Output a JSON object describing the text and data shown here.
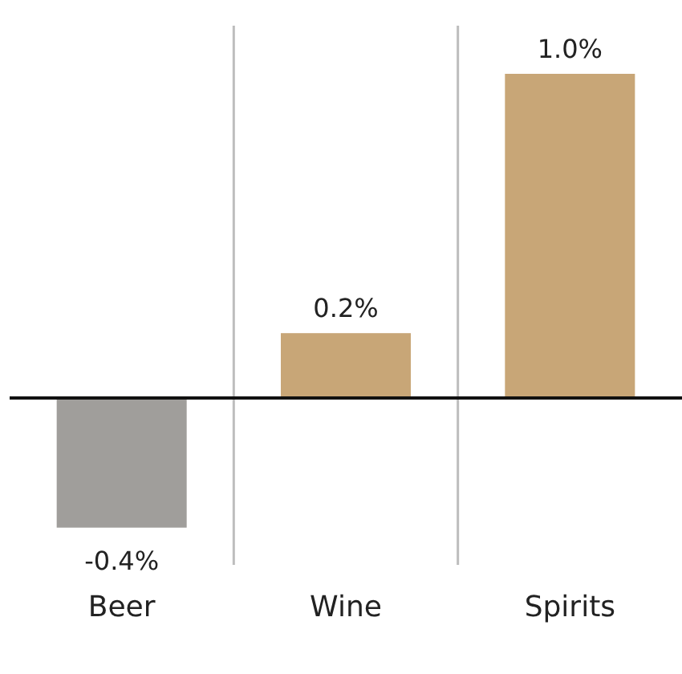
{
  "chart_data": {
    "type": "bar",
    "categories": [
      "Beer",
      "Wine",
      "Spirits"
    ],
    "values": [
      -0.4,
      0.2,
      1.0
    ],
    "colors": [
      "#a09e9b",
      "#c8a677",
      "#c8a677"
    ],
    "value_labels": [
      "-0.4%",
      "0.2%",
      "1.0%"
    ],
    "relative": false,
    "grid": "x"
  }
}
